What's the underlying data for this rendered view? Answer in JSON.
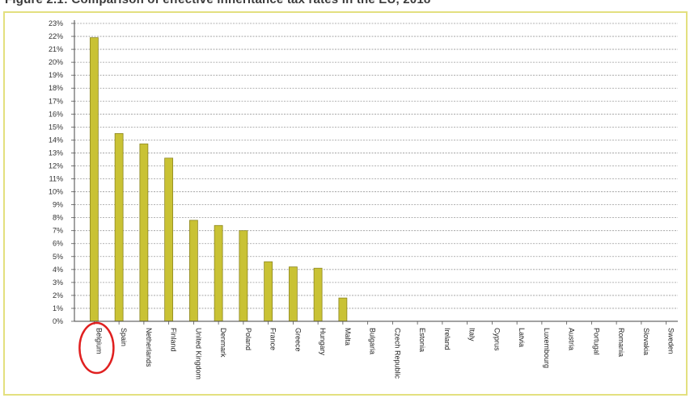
{
  "figure_title": "Figure 2.1: Comparison of effective inheritance tax rates in the EU, 2018",
  "colors": {
    "bar": "#c9c234",
    "bar_edge": "#8c8622",
    "frame": "#e3e07f",
    "highlight": "#e02020"
  },
  "highlight_category": "Belgium",
  "chart_data": {
    "type": "bar",
    "title": "",
    "xlabel": "",
    "ylabel": "",
    "ylim": [
      0,
      23
    ],
    "grid": true,
    "y_ticks": [
      "0%",
      "1%",
      "2%",
      "3%",
      "4%",
      "5%",
      "6%",
      "7%",
      "8%",
      "9%",
      "10%",
      "11%",
      "12%",
      "13%",
      "14%",
      "15%",
      "16%",
      "17%",
      "18%",
      "19%",
      "20%",
      "21%",
      "22%",
      "23%"
    ],
    "categories": [
      "Belgium",
      "Spain",
      "Netherlands",
      "Finland",
      "United Kingdom",
      "Denmark",
      "Poland",
      "France",
      "Greece",
      "Hungary",
      "Malta",
      "Bulgaria",
      "Czech Republic",
      "Estonia",
      "Ireland",
      "Italy",
      "Cyprus",
      "Latvia",
      "Luxembourg",
      "Austria",
      "Portugal",
      "Romania",
      "Slovakia",
      "Sweden"
    ],
    "values": [
      21.9,
      14.5,
      13.7,
      12.6,
      7.8,
      7.4,
      7.0,
      4.6,
      4.2,
      4.1,
      1.8,
      0,
      0,
      0,
      0,
      0,
      0,
      0,
      0,
      0,
      0,
      0,
      0,
      0
    ]
  }
}
